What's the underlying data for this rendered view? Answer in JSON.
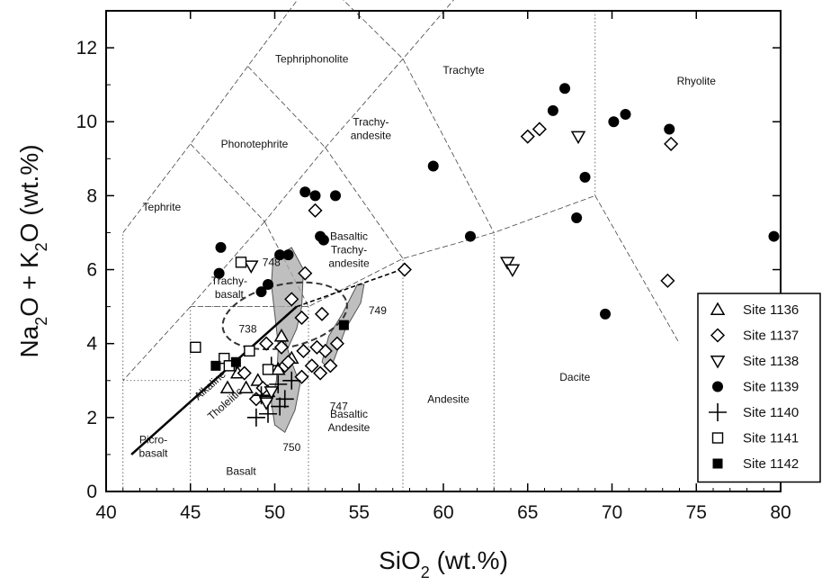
{
  "chart_data": {
    "type": "scatter",
    "title": "",
    "xlabel": "SiO",
    "xlabel_sub": "2",
    "xlabel_suffix": " (wt.%)",
    "ylabel_parts": [
      "Na",
      "2",
      "O + K",
      "2",
      "O (wt.%)"
    ],
    "xlim": [
      40,
      80
    ],
    "ylim": [
      0,
      13
    ],
    "xticks": [
      40,
      45,
      50,
      55,
      60,
      65,
      70,
      75,
      80
    ],
    "yticks": [
      0,
      2,
      4,
      6,
      8,
      10,
      12
    ],
    "grid": false,
    "legend_position": "bottom-right",
    "field_labels": [
      {
        "id": "tephriphonolite",
        "lines": [
          "Tephriphonolite"
        ],
        "x": 52.2,
        "y": 11.6
      },
      {
        "id": "trachyte",
        "lines": [
          "Trachyte"
        ],
        "x": 61.2,
        "y": 11.3
      },
      {
        "id": "rhyolite",
        "lines": [
          "Rhyolite"
        ],
        "x": 75.0,
        "y": 11.0
      },
      {
        "id": "phonotephrite",
        "lines": [
          "Phonotephrite"
        ],
        "x": 48.8,
        "y": 9.3
      },
      {
        "id": "trachyandesite",
        "lines": [
          "Trachy-",
          "andesite"
        ],
        "x": 55.7,
        "y": 9.9
      },
      {
        "id": "tephrite",
        "lines": [
          "Tephrite"
        ],
        "x": 43.3,
        "y": 7.6
      },
      {
        "id": "basaltic-trachyandesite",
        "lines": [
          "Basaltic",
          "Trachy-",
          "andesite"
        ],
        "x": 54.4,
        "y": 6.8
      },
      {
        "id": "trachybasalt",
        "lines": [
          "Trachy-",
          "basalt"
        ],
        "x": 47.3,
        "y": 5.6
      },
      {
        "id": "dacite",
        "lines": [
          "Dacite"
        ],
        "x": 67.8,
        "y": 3.0
      },
      {
        "id": "andesite",
        "lines": [
          "Andesite"
        ],
        "x": 60.3,
        "y": 2.4
      },
      {
        "id": "basaltic-andesite",
        "lines": [
          "Basaltic",
          "Andesite"
        ],
        "x": 54.4,
        "y": 2.0
      },
      {
        "id": "picrobasalt",
        "lines": [
          "Picro-",
          "basalt"
        ],
        "x": 42.8,
        "y": 1.3
      },
      {
        "id": "basalt",
        "lines": [
          "Basalt"
        ],
        "x": 48.0,
        "y": 0.45
      }
    ],
    "annotations": [
      {
        "id": "748",
        "text": "748",
        "x": 49.8,
        "y": 6.1
      },
      {
        "id": "749",
        "text": "749",
        "x": 56.1,
        "y": 4.8
      },
      {
        "id": "738",
        "text": "738",
        "x": 48.4,
        "y": 4.3
      },
      {
        "id": "747",
        "text": "747",
        "x": 53.8,
        "y": 2.2
      },
      {
        "id": "750",
        "text": "750",
        "x": 51.0,
        "y": 1.1
      }
    ],
    "trend_labels": [
      {
        "id": "alkaline",
        "text": "Alkaline",
        "x": 46.3,
        "y": 2.8
      },
      {
        "id": "tholeiitic",
        "text": "Tholeiitic",
        "x": 47.2,
        "y": 2.3
      }
    ],
    "series": [
      {
        "name": "Site 1136",
        "marker": "triangle-up",
        "points": [
          [
            47.8,
            3.2
          ],
          [
            48.3,
            2.8
          ],
          [
            49.0,
            3.0
          ],
          [
            50.4,
            4.2
          ],
          [
            51.0,
            3.6
          ],
          [
            49.6,
            2.7
          ],
          [
            50.2,
            3.3
          ],
          [
            47.2,
            2.8
          ]
        ]
      },
      {
        "name": "Site 1137",
        "marker": "diamond",
        "points": [
          [
            52.4,
            7.6
          ],
          [
            51.8,
            5.9
          ],
          [
            51.0,
            5.2
          ],
          [
            51.6,
            4.7
          ],
          [
            52.8,
            4.8
          ],
          [
            53.7,
            4.0
          ],
          [
            53.0,
            3.8
          ],
          [
            52.5,
            3.9
          ],
          [
            51.7,
            3.8
          ],
          [
            52.2,
            3.4
          ],
          [
            51.6,
            3.1
          ],
          [
            50.6,
            3.4
          ],
          [
            50.4,
            3.9
          ],
          [
            49.5,
            4.0
          ],
          [
            48.2,
            3.2
          ],
          [
            49.3,
            2.8
          ],
          [
            48.9,
            2.5
          ],
          [
            50.8,
            3.5
          ],
          [
            57.7,
            6.0
          ],
          [
            65.0,
            9.6
          ],
          [
            65.7,
            9.8
          ],
          [
            73.5,
            9.4
          ],
          [
            73.3,
            5.7
          ],
          [
            52.7,
            3.2
          ],
          [
            53.3,
            3.4
          ]
        ]
      },
      {
        "name": "Site 1138",
        "marker": "triangle-down",
        "points": [
          [
            48.6,
            6.1
          ],
          [
            63.8,
            6.2
          ],
          [
            64.1,
            6.0
          ],
          [
            68.0,
            9.6
          ],
          [
            49.8,
            2.7
          ],
          [
            49.5,
            2.4
          ]
        ]
      },
      {
        "name": "Site 1139",
        "marker": "circle",
        "points": [
          [
            46.8,
            6.6
          ],
          [
            46.7,
            5.9
          ],
          [
            50.3,
            6.4
          ],
          [
            50.8,
            6.4
          ],
          [
            49.2,
            5.4
          ],
          [
            49.6,
            5.6
          ],
          [
            51.8,
            8.1
          ],
          [
            52.4,
            8.0
          ],
          [
            53.6,
            8.0
          ],
          [
            52.7,
            6.9
          ],
          [
            52.9,
            6.8
          ],
          [
            59.4,
            8.8
          ],
          [
            61.6,
            6.9
          ],
          [
            66.5,
            10.3
          ],
          [
            67.2,
            10.9
          ],
          [
            68.4,
            8.5
          ],
          [
            67.9,
            7.4
          ],
          [
            70.1,
            10.0
          ],
          [
            70.8,
            10.2
          ],
          [
            73.4,
            9.8
          ],
          [
            69.6,
            4.8
          ],
          [
            79.6,
            6.9
          ]
        ]
      },
      {
        "name": "Site 1140",
        "marker": "plus",
        "points": [
          [
            48.9,
            2.0
          ],
          [
            49.6,
            2.1
          ],
          [
            50.3,
            2.3
          ],
          [
            50.6,
            2.5
          ],
          [
            49.2,
            2.6
          ],
          [
            50.2,
            2.9
          ],
          [
            51.0,
            3.0
          ],
          [
            49.8,
            3.4
          ]
        ]
      },
      {
        "name": "Site 1141",
        "marker": "square",
        "points": [
          [
            45.3,
            3.9
          ],
          [
            47.0,
            3.6
          ],
          [
            47.4,
            3.4
          ],
          [
            48.5,
            3.8
          ],
          [
            47.3,
            3.4
          ],
          [
            48.0,
            6.2
          ],
          [
            49.6,
            3.3
          ]
        ]
      },
      {
        "name": "Site 1142",
        "marker": "filled-square",
        "points": [
          [
            46.5,
            3.4
          ],
          [
            47.7,
            3.5
          ],
          [
            54.1,
            4.5
          ]
        ]
      }
    ]
  }
}
